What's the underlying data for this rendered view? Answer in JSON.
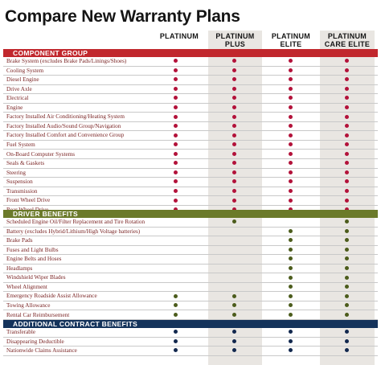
{
  "title": "Compare New Warranty Plans",
  "columns": [
    {
      "line1": "",
      "line2": "PLATINUM"
    },
    {
      "line1": "PLATINUM",
      "line2": "PLUS"
    },
    {
      "line1": "PLATINUM",
      "line2": "ELITE"
    },
    {
      "line1": "PLATINUM",
      "line2": "CARE ELITE"
    }
  ],
  "colors": {
    "component_bar": "#c1272d",
    "driver_bar": "#6b7a2a",
    "additional_bar": "#14335b",
    "dot_red": "#b3123a",
    "dot_green": "#4c5c1c",
    "dot_navy": "#12284e",
    "shaded_column": "#e9e6e2",
    "row_text": "#7a2424"
  },
  "sections": [
    {
      "title": "COMPONENT GROUP",
      "theme": "red",
      "rows": [
        {
          "label": "Brake System (excludes Brake Pads/Linings/Shoes)",
          "plans": [
            1,
            1,
            1,
            1
          ]
        },
        {
          "label": "Cooling System",
          "plans": [
            1,
            1,
            1,
            1
          ]
        },
        {
          "label": "Diesel Engine",
          "plans": [
            1,
            1,
            1,
            1
          ]
        },
        {
          "label": "Drive Axle",
          "plans": [
            1,
            1,
            1,
            1
          ]
        },
        {
          "label": "Electrical",
          "plans": [
            1,
            1,
            1,
            1
          ]
        },
        {
          "label": "Engine",
          "plans": [
            1,
            1,
            1,
            1
          ]
        },
        {
          "label": "Factory Installed Air Conditioning/Heating System",
          "plans": [
            1,
            1,
            1,
            1
          ]
        },
        {
          "label": "Factory Installed Audio/Sound Group/Navigation",
          "plans": [
            1,
            1,
            1,
            1
          ]
        },
        {
          "label": "Factory Installed Comfort and Convenience Group",
          "plans": [
            1,
            1,
            1,
            1
          ]
        },
        {
          "label": "Fuel System",
          "plans": [
            1,
            1,
            1,
            1
          ]
        },
        {
          "label": "On-Board Computer Systems",
          "plans": [
            1,
            1,
            1,
            1
          ]
        },
        {
          "label": "Seals & Gaskets",
          "plans": [
            1,
            1,
            1,
            1
          ]
        },
        {
          "label": "Steering",
          "plans": [
            1,
            1,
            1,
            1
          ]
        },
        {
          "label": "Suspension",
          "plans": [
            1,
            1,
            1,
            1
          ]
        },
        {
          "label": "Transmission",
          "plans": [
            1,
            1,
            1,
            1
          ]
        },
        {
          "label": "Front Wheel Drive",
          "plans": [
            1,
            1,
            1,
            1
          ]
        },
        {
          "label": "Rear Wheel Drive",
          "plans": [
            1,
            1,
            1,
            1
          ]
        }
      ]
    },
    {
      "title": "DRIVER BENEFITS",
      "theme": "green",
      "rows": [
        {
          "label": "Scheduled Engine Oil/Filter Replacement and Tire Rotation",
          "plans": [
            0,
            1,
            0,
            1
          ]
        },
        {
          "label": "Battery (excludes Hybrid/Lithium/High Voltage batteries)",
          "plans": [
            0,
            0,
            1,
            1
          ]
        },
        {
          "label": "Brake Pads",
          "plans": [
            0,
            0,
            1,
            1
          ]
        },
        {
          "label": "Fuses and Light Bulbs",
          "plans": [
            0,
            0,
            1,
            1
          ]
        },
        {
          "label": "Engine Belts and Hoses",
          "plans": [
            0,
            0,
            1,
            1
          ]
        },
        {
          "label": "Headlamps",
          "plans": [
            0,
            0,
            1,
            1
          ]
        },
        {
          "label": "Windshield Wiper Blades",
          "plans": [
            0,
            0,
            1,
            1
          ]
        },
        {
          "label": "Wheel Alignment",
          "plans": [
            0,
            0,
            1,
            1
          ]
        },
        {
          "label": "Emergency Roadside Assist Allowance",
          "plans": [
            1,
            1,
            1,
            1
          ]
        },
        {
          "label": "Towing Allowance",
          "plans": [
            1,
            1,
            1,
            1
          ]
        },
        {
          "label": "Rental Car Reimbursement",
          "plans": [
            1,
            1,
            1,
            1
          ]
        }
      ]
    },
    {
      "title": "ADDITIONAL CONTRACT BENEFITS",
      "theme": "navy",
      "rows": [
        {
          "label": "Transferable",
          "plans": [
            1,
            1,
            1,
            1
          ]
        },
        {
          "label": "Disappearing Deductible",
          "plans": [
            1,
            1,
            1,
            1
          ]
        },
        {
          "label": "Nationwide Claims Assistance",
          "plans": [
            1,
            1,
            1,
            1
          ]
        }
      ]
    }
  ]
}
